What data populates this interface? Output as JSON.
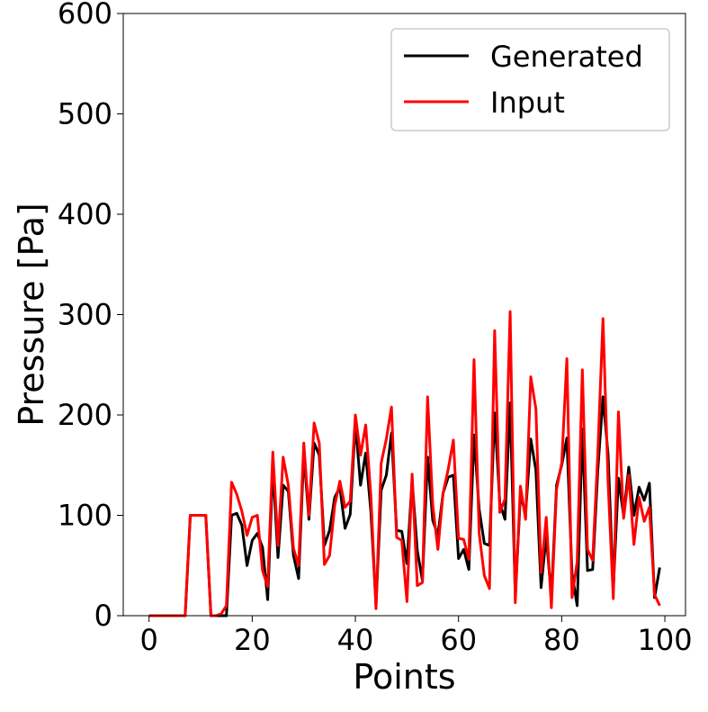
{
  "chart_data": {
    "type": "line",
    "title": "",
    "xlabel": "Points",
    "ylabel": "Pressure [Pa]",
    "xlim": [
      -5,
      104
    ],
    "ylim": [
      0,
      600
    ],
    "xticks": [
      0,
      20,
      40,
      60,
      80,
      100
    ],
    "yticks": [
      0,
      100,
      200,
      300,
      400,
      500,
      600
    ],
    "grid": false,
    "legend_position": "top-right",
    "x": [
      0,
      1,
      2,
      3,
      4,
      5,
      6,
      7,
      8,
      9,
      10,
      11,
      12,
      13,
      14,
      15,
      16,
      17,
      18,
      19,
      20,
      21,
      22,
      23,
      24,
      25,
      26,
      27,
      28,
      29,
      30,
      31,
      32,
      33,
      34,
      35,
      36,
      37,
      38,
      39,
      40,
      41,
      42,
      43,
      44,
      45,
      46,
      47,
      48,
      49,
      50,
      51,
      52,
      53,
      54,
      55,
      56,
      57,
      58,
      59,
      60,
      61,
      62,
      63,
      64,
      65,
      66,
      67,
      68,
      69,
      70,
      71,
      72,
      73,
      74,
      75,
      76,
      77,
      78,
      79,
      80,
      81,
      82,
      83,
      84,
      85,
      86,
      87,
      88,
      89,
      90,
      91,
      92,
      93,
      94,
      95,
      96,
      97,
      98,
      99
    ],
    "series": [
      {
        "name": "Generated",
        "color": "#000000",
        "values": [
          0,
          0,
          0,
          0,
          0,
          0,
          0,
          0,
          100,
          100,
          100,
          100,
          0,
          0,
          0,
          0,
          100,
          102,
          90,
          50,
          75,
          82,
          68,
          16,
          148,
          58,
          130,
          124,
          60,
          37,
          162,
          96,
          172,
          160,
          70,
          85,
          118,
          128,
          87,
          101,
          192,
          130,
          162,
          104,
          10,
          125,
          140,
          182,
          85,
          84,
          52,
          135,
          65,
          35,
          158,
          95,
          80,
          122,
          138,
          140,
          57,
          66,
          46,
          180,
          106,
          72,
          70,
          202,
          112,
          96,
          212,
          20,
          120,
          102,
          176,
          145,
          28,
          80,
          18,
          130,
          150,
          177,
          42,
          10,
          186,
          45,
          46,
          145,
          218,
          160,
          26,
          137,
          100,
          148,
          100,
          128,
          115,
          132,
          18,
          48
        ]
      },
      {
        "name": "Input",
        "color": "#ff0000",
        "values": [
          0,
          0,
          0,
          0,
          0,
          0,
          0,
          0,
          100,
          100,
          100,
          100,
          0,
          0,
          2,
          10,
          133,
          121,
          104,
          80,
          98,
          100,
          45,
          29,
          163,
          70,
          158,
          130,
          67,
          50,
          172,
          100,
          192,
          172,
          51,
          60,
          110,
          134,
          108,
          114,
          200,
          160,
          190,
          120,
          7,
          152,
          176,
          208,
          78,
          75,
          14,
          141,
          30,
          33,
          218,
          110,
          66,
          122,
          146,
          175,
          77,
          76,
          56,
          255,
          82,
          40,
          27,
          284,
          103,
          116,
          303,
          13,
          129,
          96,
          238,
          206,
          43,
          98,
          8,
          126,
          152,
          256,
          18,
          54,
          245,
          66,
          55,
          162,
          296,
          132,
          17,
          203,
          97,
          140,
          71,
          118,
          94,
          108,
          21,
          10
        ]
      }
    ]
  }
}
